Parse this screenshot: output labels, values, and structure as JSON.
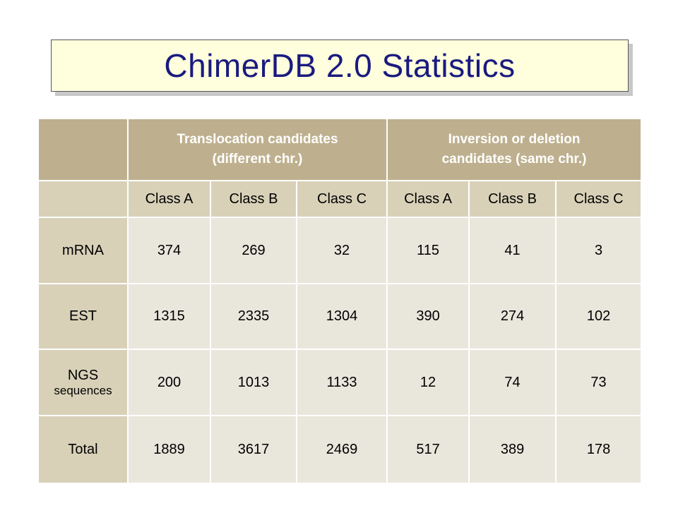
{
  "title": "ChimerDB 2.0 Statistics",
  "table": {
    "group_headers": [
      {
        "line1": "Translocation candidates",
        "line2": "(different chr.)"
      },
      {
        "line1": "Inversion or deletion",
        "line2": "candidates (same chr.)"
      }
    ],
    "class_headers": [
      "Class A",
      "Class B",
      "Class C",
      "Class A",
      "Class B",
      "Class C"
    ],
    "rows": [
      {
        "label": "mRNA",
        "sublabel": "",
        "values": [
          "374",
          "269",
          "32",
          "115",
          "41",
          "3"
        ]
      },
      {
        "label": "EST",
        "sublabel": "",
        "values": [
          "1315",
          "2335",
          "1304",
          "390",
          "274",
          "102"
        ]
      },
      {
        "label": "NGS",
        "sublabel": "sequences",
        "values": [
          "200",
          "1013",
          "1133",
          "12",
          "74",
          "73"
        ]
      },
      {
        "label": "Total",
        "sublabel": "",
        "values": [
          "1889",
          "3617",
          "2469",
          "517",
          "389",
          "178"
        ]
      }
    ]
  },
  "colors": {
    "header_dark": "#beb08e",
    "header_light": "#d8d1b8",
    "cell_bg": "#e9e6dc",
    "title_bg": "#ffffdd",
    "title_text": "#1a1a80"
  }
}
